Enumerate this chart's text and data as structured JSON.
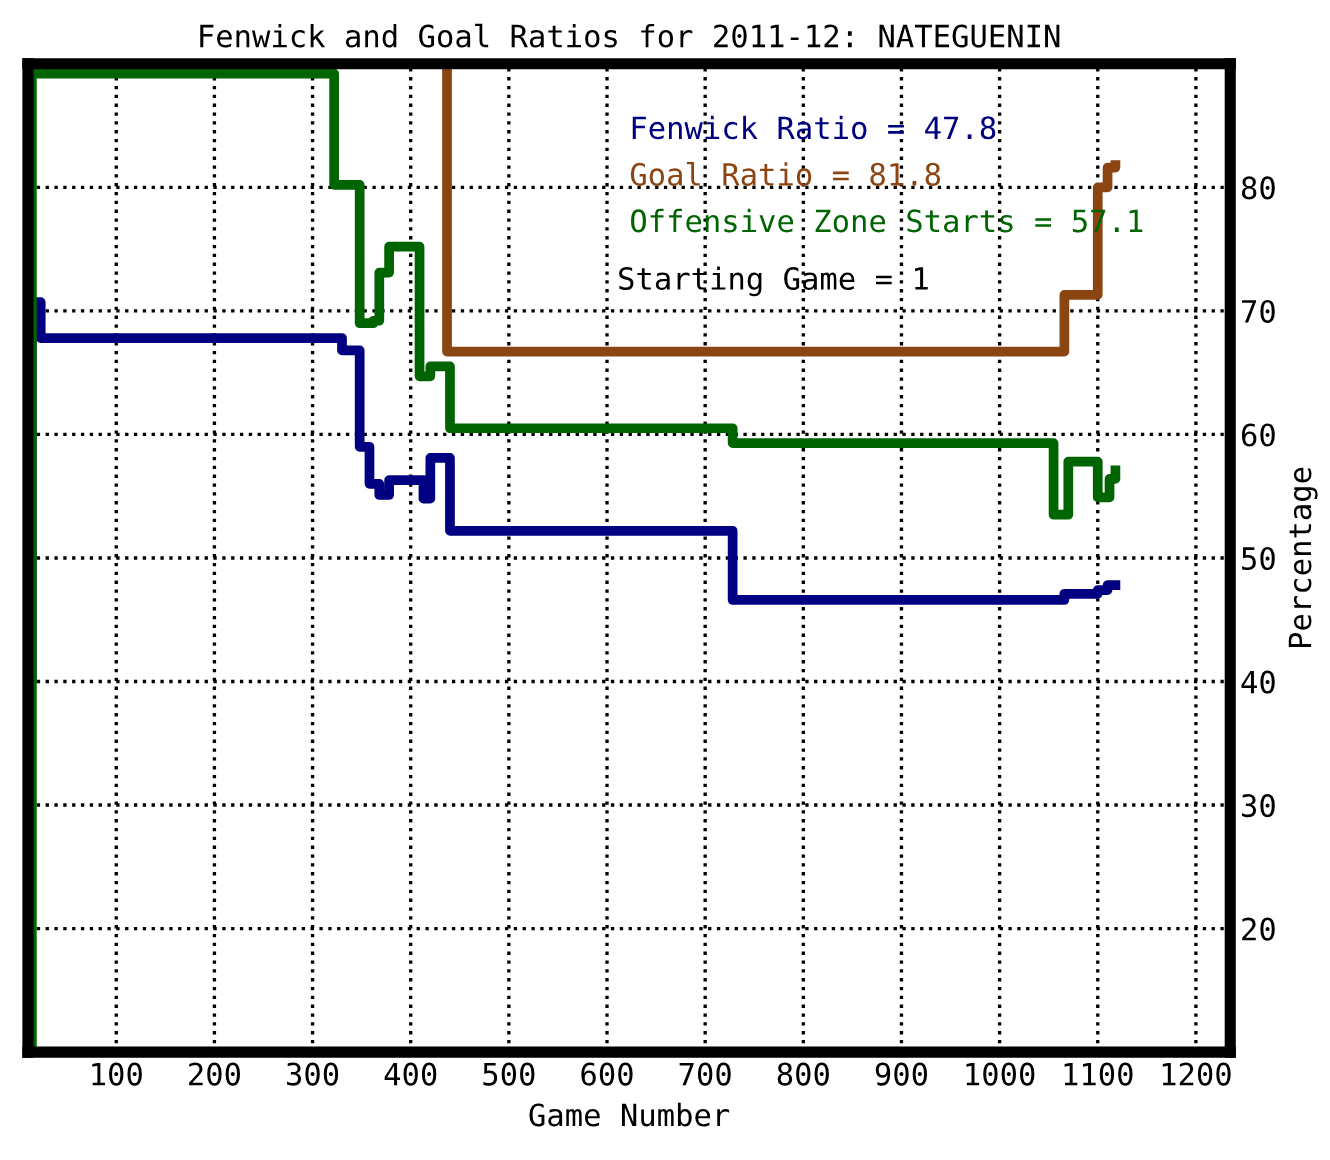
{
  "chart_data": {
    "type": "step",
    "title": "Fenwick and Goal Ratios for 2011-12: NATEGUENIN",
    "xlabel": "Game Number",
    "ylabel": "Percentage",
    "xlim": [
      10,
      1235
    ],
    "ylim": [
      10,
      90
    ],
    "xticks": [
      100,
      200,
      300,
      400,
      500,
      600,
      700,
      800,
      900,
      1000,
      1100,
      1200
    ],
    "yticks": [
      20,
      30,
      40,
      50,
      60,
      70,
      80
    ],
    "grid": true,
    "legend": "top right",
    "line_style": "solid",
    "marker": "none",
    "series": [
      {
        "name": "Fenwick Ratio = 47.8",
        "color": "#000080",
        "x": [
          12,
          14,
          23,
          330,
          348,
          358,
          368,
          378,
          409,
          413,
          420,
          440,
          728,
          1066,
          1100,
          1110,
          1118
        ],
        "values": [
          40,
          70.7,
          67.8,
          66.8,
          59,
          56,
          55.1,
          56.3,
          56.3,
          54.8,
          58.1,
          52.2,
          46.6,
          47.1,
          47.4,
          47.8,
          47.8
        ]
      },
      {
        "name": "Goal Ratio = 81.8",
        "color": "#8b4513",
        "x": [
          435,
          437,
          1066,
          1100,
          1110,
          1118
        ],
        "values": [
          90,
          66.7,
          71.3,
          80,
          81.6,
          81.8
        ]
      },
      {
        "name": "Offensive Zone Starts = 57.1",
        "color": "#006400",
        "x": [
          12,
          14,
          322,
          348,
          362,
          368,
          378,
          409,
          420,
          440,
          728,
          1055,
          1070,
          1100,
          1112,
          1118
        ],
        "values": [
          10,
          89.2,
          80.2,
          69,
          69.2,
          73.1,
          75.2,
          64.7,
          65.5,
          60.5,
          59.3,
          53.5,
          57.8,
          54.9,
          56.4,
          57.1
        ]
      }
    ],
    "annotations": [
      "Starting Game = 1"
    ]
  }
}
